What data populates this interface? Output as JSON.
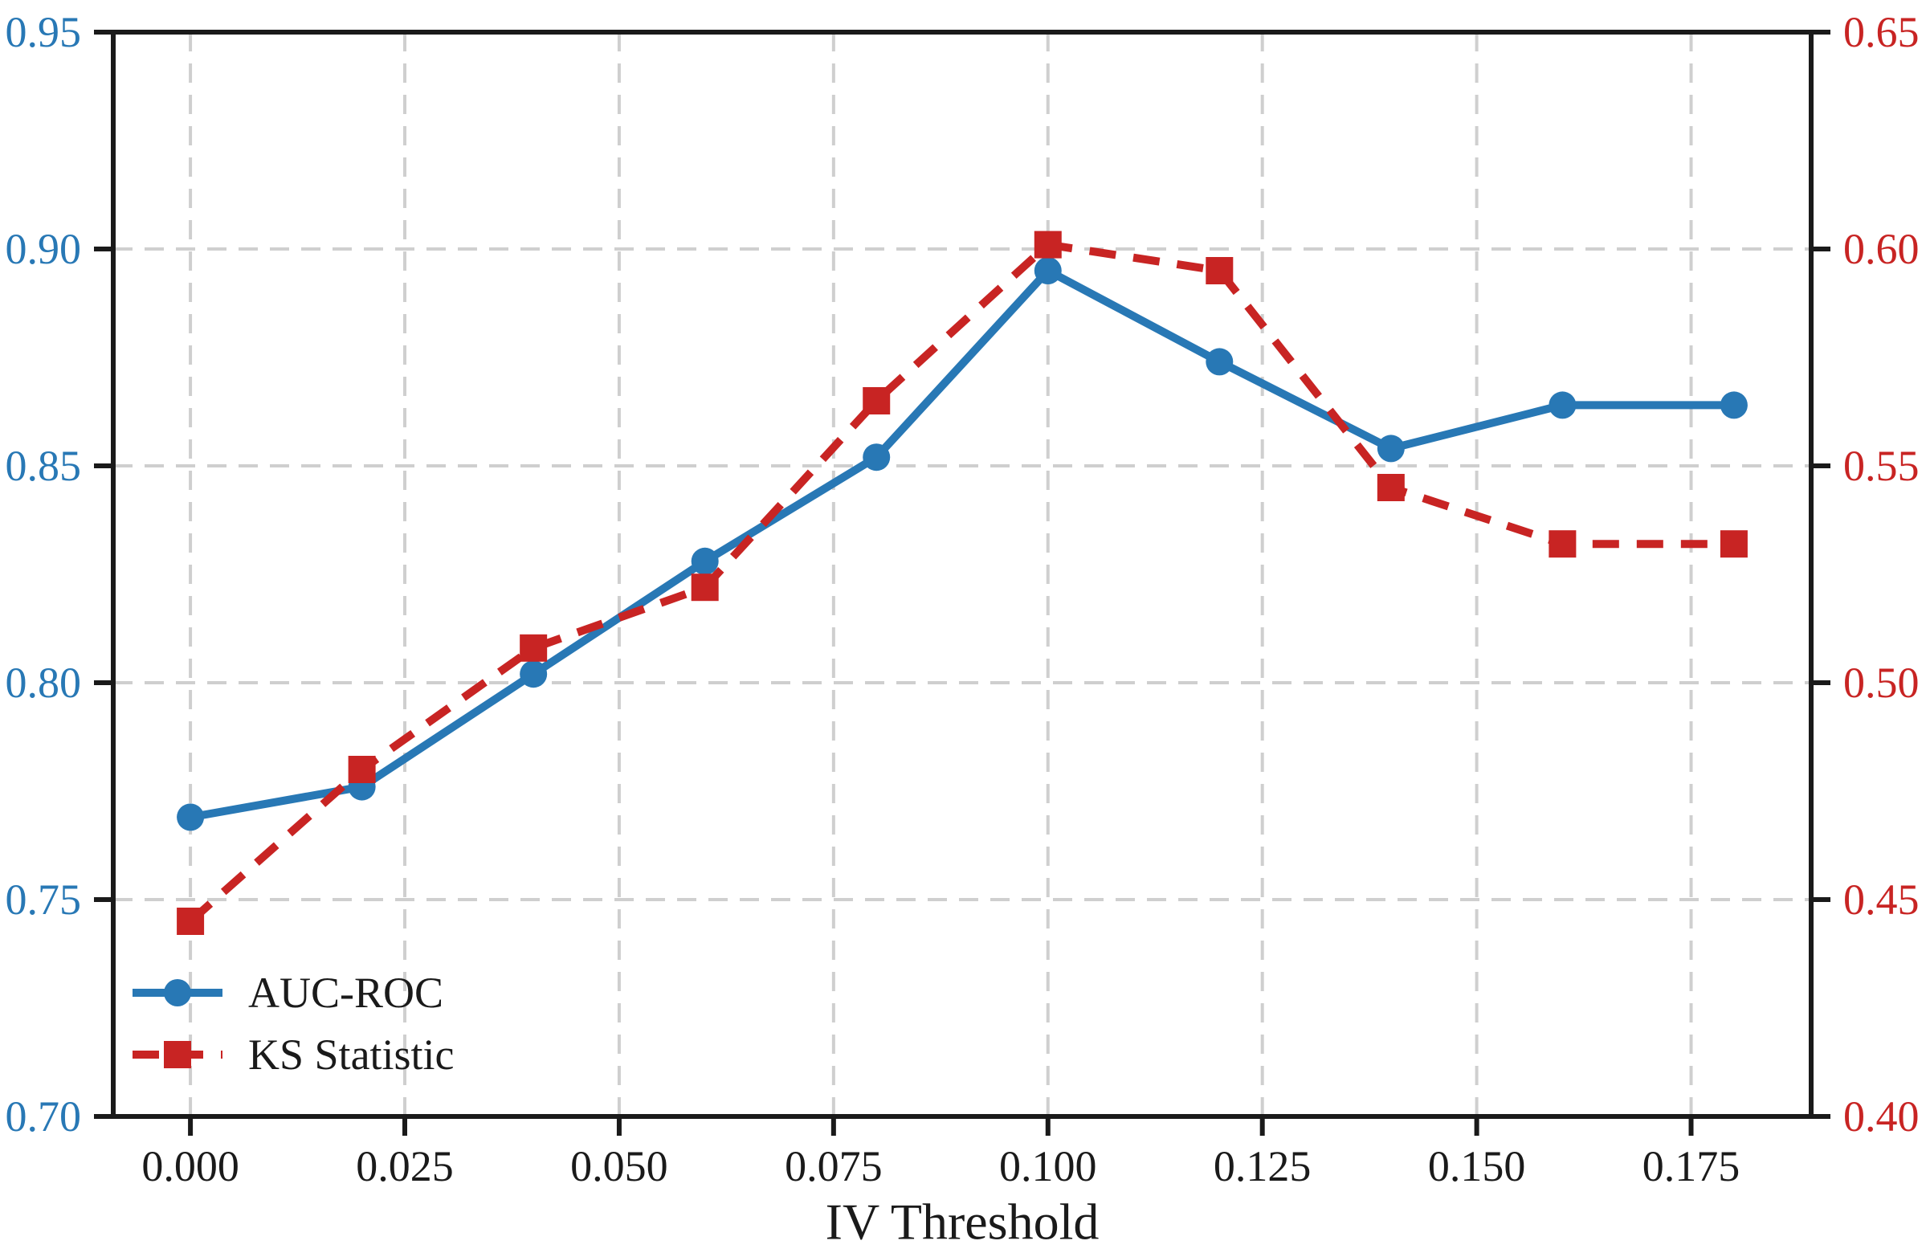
{
  "chart_data": {
    "type": "line",
    "title": "",
    "xlabel": "IV Threshold",
    "x": [
      0.0,
      0.02,
      0.04,
      0.06,
      0.08,
      0.1,
      0.12,
      0.14,
      0.16,
      0.18
    ],
    "series": [
      {
        "name": "AUC-ROC",
        "axis": "left",
        "color": "#2878B5",
        "linestyle": "solid",
        "marker": "circle",
        "values": [
          0.769,
          0.776,
          0.802,
          0.828,
          0.852,
          0.895,
          0.874,
          0.854,
          0.864,
          0.864
        ]
      },
      {
        "name": "KS Statistic",
        "axis": "right",
        "color": "#C82423",
        "linestyle": "dashed",
        "marker": "square",
        "values": [
          0.445,
          0.48,
          0.508,
          0.522,
          0.565,
          0.601,
          0.595,
          0.545,
          0.532,
          0.532
        ]
      }
    ],
    "xlim": [
      -0.009,
      0.189
    ],
    "x_ticks": [
      {
        "value": 0.0,
        "label": "0.000"
      },
      {
        "value": 0.025,
        "label": "0.025"
      },
      {
        "value": 0.05,
        "label": "0.050"
      },
      {
        "value": 0.075,
        "label": "0.075"
      },
      {
        "value": 0.1,
        "label": "0.100"
      },
      {
        "value": 0.125,
        "label": "0.125"
      },
      {
        "value": 0.15,
        "label": "0.150"
      },
      {
        "value": 0.175,
        "label": "0.175"
      }
    ],
    "left_axis": {
      "label": "",
      "color": "#2878B5",
      "range": [
        0.7,
        0.95
      ],
      "ticks": [
        {
          "value": 0.7,
          "label": "0.70"
        },
        {
          "value": 0.75,
          "label": "0.75"
        },
        {
          "value": 0.8,
          "label": "0.80"
        },
        {
          "value": 0.85,
          "label": "0.85"
        },
        {
          "value": 0.9,
          "label": "0.90"
        },
        {
          "value": 0.95,
          "label": "0.95"
        }
      ]
    },
    "right_axis": {
      "label": "",
      "color": "#C82423",
      "range": [
        0.4,
        0.65
      ],
      "ticks": [
        {
          "value": 0.4,
          "label": "0.40"
        },
        {
          "value": 0.45,
          "label": "0.45"
        },
        {
          "value": 0.5,
          "label": "0.50"
        },
        {
          "value": 0.55,
          "label": "0.55"
        },
        {
          "value": 0.6,
          "label": "0.60"
        },
        {
          "value": 0.65,
          "label": "0.65"
        }
      ]
    },
    "legend": {
      "position": "lower-left",
      "entries": [
        "AUC-ROC",
        "KS Statistic"
      ]
    },
    "grid": true,
    "grid_color": "#cfcfcf",
    "spine_color": "#1a1a1a",
    "tick_text_color": "#1a1a1a"
  }
}
